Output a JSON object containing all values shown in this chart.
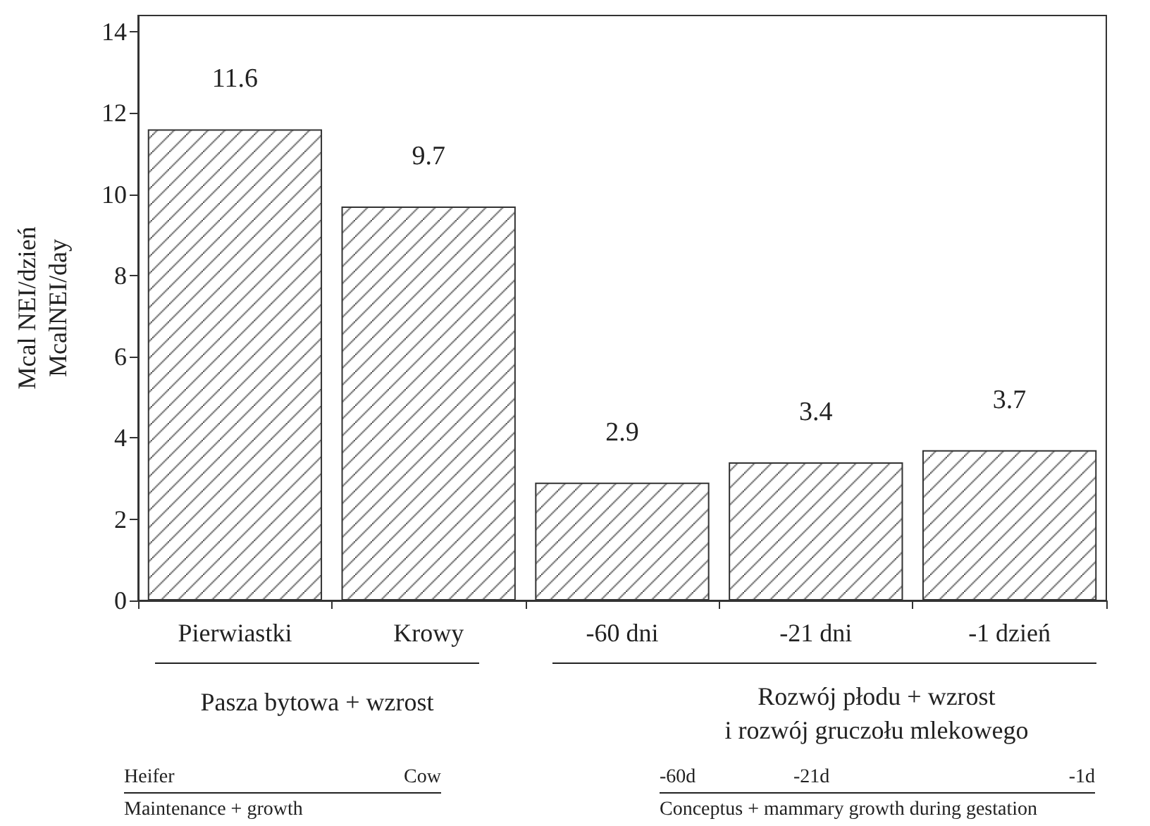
{
  "chart_data": {
    "type": "bar",
    "ylabel": "Mcal NEI/dzień\nMcalNEI/day",
    "categories": [
      "Pierwiastki",
      "Krowy",
      "-60 dni",
      "-21 dni",
      "-1 dzień"
    ],
    "values": [
      11.6,
      9.7,
      2.9,
      3.4,
      3.7
    ],
    "color": "#333333",
    "data_labels": true,
    "ylim": [
      0,
      14.4
    ],
    "yticks": [
      0,
      2,
      4,
      6,
      8,
      10,
      12,
      14
    ],
    "grid": false,
    "annotations": [
      "Pasza bytowa + wzrost",
      "Rozwój płodu + wzrost\ni rozwój gruczołu mlekowego",
      "Heifer",
      "Cow",
      "Maintenance + growth",
      "-60d",
      "-21d",
      "-1d",
      "Conceptus + mammary growth during gestation"
    ]
  }
}
